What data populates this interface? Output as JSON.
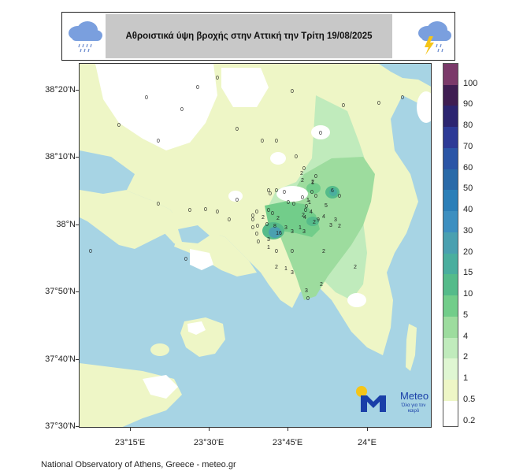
{
  "header": {
    "title": "Αθροιστικά ύψη βροχής στην Αττική την Τρίτη 19/08/2025",
    "left_icon": "rain-cloud-icon",
    "right_icon": "storm-cloud-icon"
  },
  "map": {
    "lat_labels": [
      "38°20'N",
      "38°10'N",
      "38°N",
      "37°50'N",
      "37°40'N",
      "37°30'N"
    ],
    "lon_labels": [
      "23°15'E",
      "23°30'E",
      "23°45'E",
      "24°E"
    ]
  },
  "legend": {
    "levels": [
      "100",
      "90",
      "80",
      "70",
      "60",
      "50",
      "40",
      "30",
      "20",
      "15",
      "10",
      "5",
      "4",
      "2",
      "1",
      "0.5",
      "0.2"
    ],
    "colors": [
      "#7b3a6a",
      "#3f1e52",
      "#2c2570",
      "#2d3a96",
      "#2b55a6",
      "#2a6aa8",
      "#2c7fb8",
      "#3d8fc0",
      "#4aa0b0",
      "#4aae9e",
      "#55bb8a",
      "#72cd8a",
      "#9ddc9e",
      "#c0ebbc",
      "#dff6d2",
      "#eef6c6",
      "#ffffff"
    ]
  },
  "logo": {
    "word": "Meteo",
    "tagline": "Όλα για τον καιρό"
  },
  "footer": "National Observatory of Athens, Greece - meteo.gr",
  "point_values": [
    "0",
    "0",
    "0",
    "0",
    "0",
    "0",
    "0",
    "0",
    "0",
    "0",
    "0",
    "0",
    "0",
    "0",
    "0",
    "0",
    "0",
    "0",
    "0",
    "0",
    "0",
    "0",
    "0",
    "0",
    "0",
    "0",
    "0",
    "0",
    "0",
    "0",
    "0",
    "0",
    "0",
    "0",
    "0",
    "0",
    "0",
    "0",
    "0",
    "0",
    "2",
    "1",
    "1",
    "2",
    "2",
    "0",
    "0",
    "1",
    "6",
    "2",
    "4",
    "5",
    "2",
    "3",
    "2",
    "3",
    "3",
    "8",
    "16",
    "3",
    "3",
    "2",
    "2",
    "1",
    "2",
    "0",
    "3",
    "3",
    "2",
    "2",
    "0",
    "1",
    "0",
    "0",
    "0",
    "0",
    "0",
    "4",
    "9",
    "4",
    "1",
    "3",
    "2",
    "0"
  ]
}
